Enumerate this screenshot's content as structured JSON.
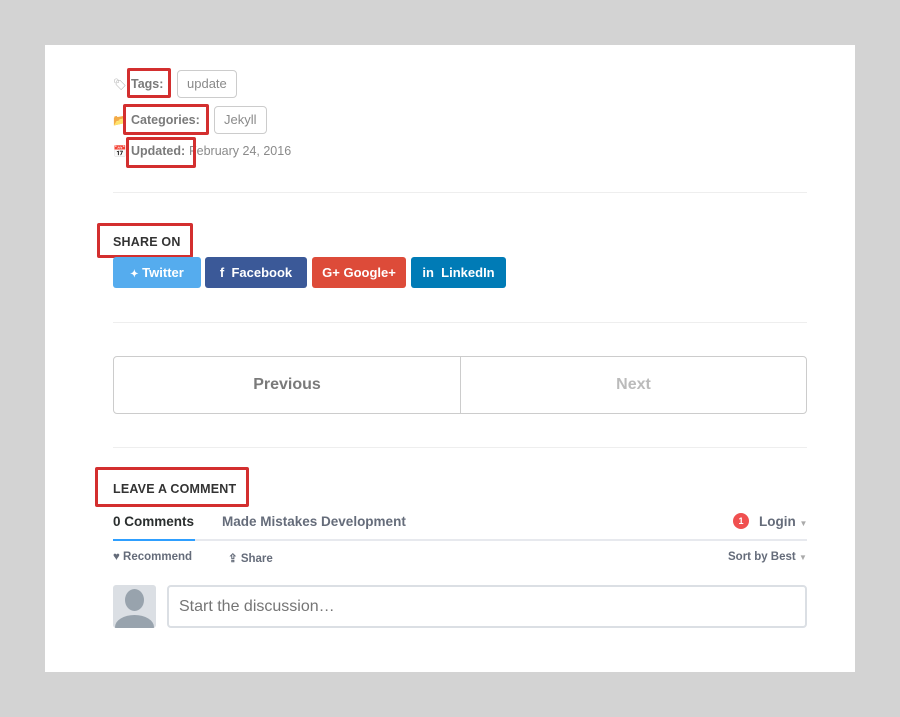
{
  "meta": {
    "tags_label": "Tags:",
    "tags": [
      "update"
    ],
    "categories_label": "Categories:",
    "categories": [
      "Jekyll"
    ],
    "updated_label": "Updated:",
    "updated_value": "February 24, 2016"
  },
  "share": {
    "heading": "SHARE ON",
    "buttons": [
      {
        "label": "Twitter",
        "icon": "twitter-icon",
        "glyph": "🐦",
        "color": "#55acee"
      },
      {
        "label": "Facebook",
        "icon": "facebook-icon",
        "glyph": "f",
        "color": "#3b5998"
      },
      {
        "label": "Google+",
        "icon": "google-plus-icon",
        "glyph": "G+",
        "color": "#dd4b39"
      },
      {
        "label": "LinkedIn",
        "icon": "linkedin-icon",
        "glyph": "in",
        "color": "#007bb6"
      }
    ]
  },
  "pagination": {
    "previous": "Previous",
    "next": "Next"
  },
  "comments": {
    "heading": "LEAVE A COMMENT",
    "tab_count": "0 Comments",
    "community": "Made Mistakes Development",
    "notification_count": "1",
    "login": "Login",
    "recommend": "Recommend",
    "share": "Share",
    "sort": "Sort by Best",
    "placeholder": "Start the discussion…"
  },
  "colors": {
    "highlight": "#d32f2f",
    "tab_underline": "#2e9fff",
    "badge": "#f05050"
  }
}
